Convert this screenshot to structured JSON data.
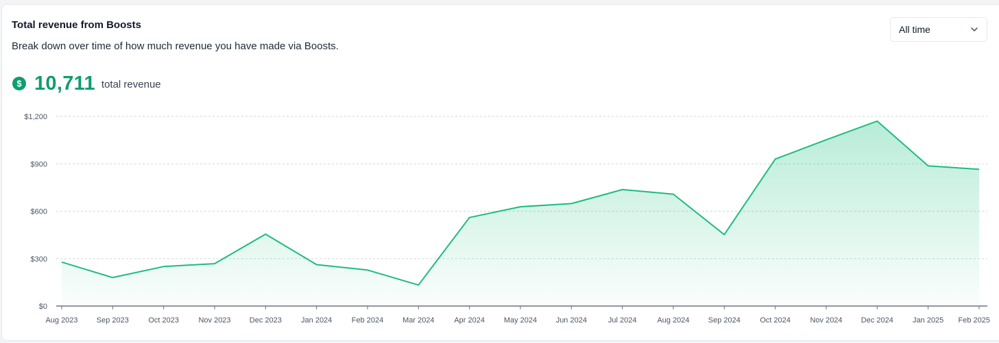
{
  "header": {
    "title": "Total revenue from Boosts",
    "subtitle": "Break down over time of how much revenue you have made via Boosts."
  },
  "summary": {
    "icon": "dollar-circle-icon",
    "value": "10,711",
    "label": "total revenue"
  },
  "range_select": {
    "selected": "All time",
    "icon": "chevron-down-icon"
  },
  "colors": {
    "accent": "#0f9d6e",
    "line": "#1dbb80",
    "fill": "#22c383"
  },
  "chart_data": {
    "type": "area",
    "categories": [
      "Aug 2023",
      "Sep 2023",
      "Oct 2023",
      "Nov 2023",
      "Dec 2023",
      "Jan 2024",
      "Feb 2024",
      "Mar 2024",
      "Apr 2024",
      "May 2024",
      "Jun 2024",
      "Jul 2024",
      "Aug 2024",
      "Sep 2024",
      "Oct 2024",
      "Nov 2024",
      "Dec 2024",
      "Jan 2025",
      "Feb 2025"
    ],
    "series": [
      {
        "values": [
          278,
          180,
          250,
          268,
          455,
          262,
          228,
          133,
          560,
          628,
          648,
          737,
          708,
          452,
          930,
          1052,
          1170,
          887,
          865
        ]
      }
    ],
    "yticks": [
      0,
      300,
      600,
      900,
      1200
    ],
    "ytick_labels": [
      "$0",
      "$300",
      "$600",
      "$900",
      "$1,200"
    ],
    "ylim": [
      0,
      1200
    ],
    "grid": true,
    "xlabel": "",
    "ylabel": ""
  }
}
